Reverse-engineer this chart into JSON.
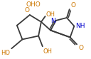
{
  "background_color": "#ffffff",
  "bond_color": "#3a3a3a",
  "oxygen_color": "#cc7700",
  "nitrogen_color": "#0000cc",
  "line_width": 1.3,
  "font_size": 6.5,
  "figsize": [
    1.28,
    0.83
  ],
  "dpi": 100,
  "xlim": [
    0,
    128
  ],
  "ylim": [
    0,
    83
  ]
}
